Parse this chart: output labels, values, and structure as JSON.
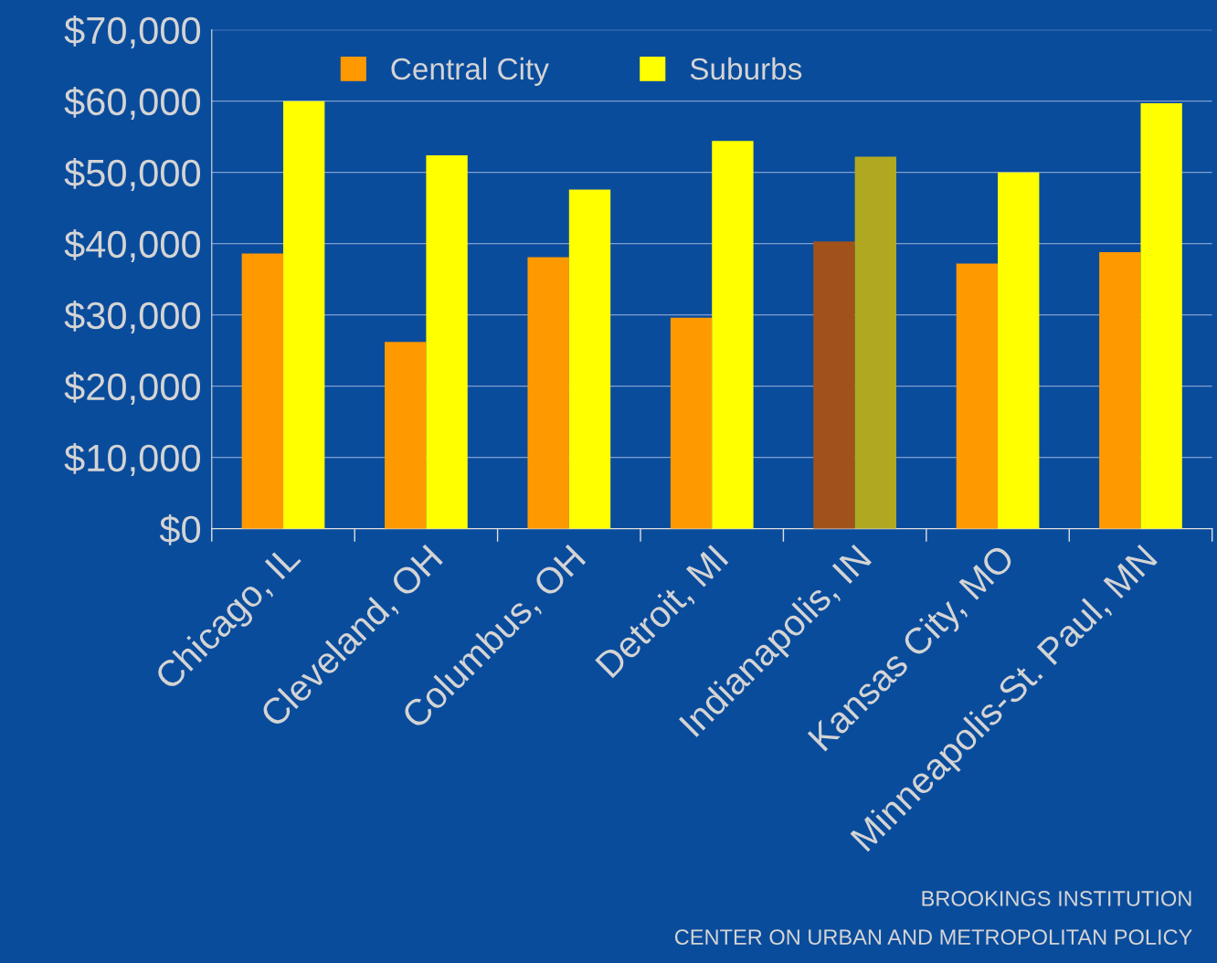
{
  "chart_data": {
    "type": "bar",
    "categories": [
      "Chicago, IL",
      "Cleveland, OH",
      "Columbus, OH",
      "Detroit, MI",
      "Indianapolis, IN",
      "Kansas City, MO",
      "Minneapolis-St. Paul, MN"
    ],
    "series": [
      {
        "name": "Central City",
        "color": "#ff9900",
        "colors": [
          "#ff9900",
          "#ff9900",
          "#ff9900",
          "#ff9900",
          "#a0521a",
          "#ff9900",
          "#ff9900"
        ],
        "values": [
          38600,
          26200,
          38100,
          29600,
          40300,
          37200,
          38800
        ]
      },
      {
        "name": "Suburbs",
        "color": "#ffff00",
        "colors": [
          "#ffff00",
          "#ffff00",
          "#ffff00",
          "#ffff00",
          "#b0a820",
          "#ffff00",
          "#ffff00"
        ],
        "values": [
          60000,
          52400,
          47600,
          54400,
          52200,
          50000,
          59700
        ]
      }
    ],
    "ylim": [
      0,
      70000
    ],
    "yticks": [
      {
        "value": 0,
        "label": "$0"
      },
      {
        "value": 10000,
        "label": "$10,000"
      },
      {
        "value": 20000,
        "label": "$20,000"
      },
      {
        "value": 30000,
        "label": "$30,000"
      },
      {
        "value": 40000,
        "label": "$40,000"
      },
      {
        "value": 50000,
        "label": "$50,000"
      },
      {
        "value": 60000,
        "label": "$60,000"
      },
      {
        "value": 70000,
        "label": "$70,000"
      }
    ],
    "grid": "y",
    "legend": "top",
    "annotations": [
      "BROOKINGS INSTITUTION",
      "CENTER ON URBAN AND METROPOLITAN POLICY"
    ]
  }
}
